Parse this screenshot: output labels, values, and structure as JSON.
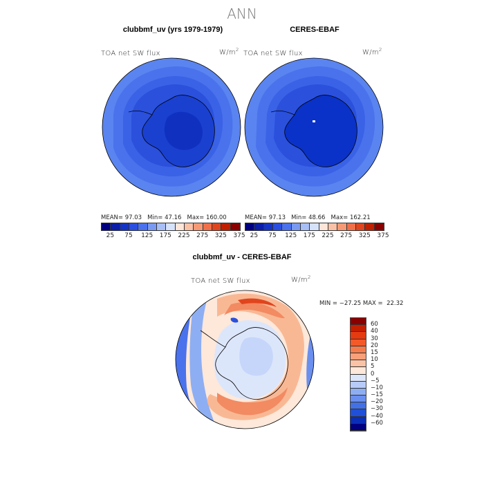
{
  "page": {
    "season": "ANN"
  },
  "panels": {
    "model": {
      "title": "clubbmf_uv (yrs 1979-1979)",
      "field": "TOA net SW flux",
      "units": "W/m",
      "units_sup": "2",
      "stats": {
        "mean_label": "MEAN=",
        "mean": "97.03",
        "min_label": "Min=",
        "min": "47.16",
        "max_label": "Max=",
        "max": "160.00"
      }
    },
    "obs": {
      "title": "CERES-EBAF",
      "field": "TOA net SW flux",
      "units": "W/m",
      "units_sup": "2",
      "stats": {
        "mean_label": "MEAN=",
        "mean": "97.13",
        "min_label": "Min=",
        "min": "48.66",
        "max_label": "Max=",
        "max": "162.21"
      }
    },
    "diff": {
      "title": "clubbmf_uv - CERES-EBAF",
      "field": "TOA net SW flux",
      "units": "W/m",
      "units_sup": "2",
      "minmax": "MIN = −27.25 MAX =  22.32"
    }
  },
  "abs_colorbar": {
    "colors": [
      "#000080",
      "#0a1ea8",
      "#1434c8",
      "#2a4fe0",
      "#4a72ee",
      "#7a9af2",
      "#a8bff6",
      "#d6e2fa",
      "#fde5d8",
      "#fac1a6",
      "#f69a76",
      "#f0704a",
      "#e0451e",
      "#c02000",
      "#8a0000"
    ],
    "labels": [
      "25",
      "75",
      "125",
      "175",
      "225",
      "275",
      "325",
      "375"
    ]
  },
  "diff_colorbar": {
    "colors": [
      "#8a0000",
      "#c42000",
      "#e63a10",
      "#f25a2a",
      "#f47c4c",
      "#f7a07a",
      "#fbc3a6",
      "#fde8da",
      "#dce6fb",
      "#b8cbf8",
      "#8eaef3",
      "#6a8fee",
      "#4270e6",
      "#2050d8",
      "#0a2eb8",
      "#000080"
    ],
    "labels": [
      "60",
      "40",
      "30",
      "20",
      "15",
      "10",
      "5",
      "0",
      "−5",
      "−10",
      "−15",
      "−20",
      "−30",
      "−40",
      "−60"
    ]
  },
  "maps": [
    {
      "name": "model-map",
      "colors": [
        "#5a84f0",
        "#4a72ec",
        "#3a62e6",
        "#2a50dc",
        "#1a40d0",
        "#1030c0"
      ]
    },
    {
      "name": "obs-map",
      "colors": [
        "#5a84f0",
        "#4a72ec",
        "#3a62e6",
        "#2a50dc",
        "#1a40d0",
        "#0a32c8"
      ]
    }
  ],
  "diff_map": {
    "colors": {
      "ocean_neutral": "#fde8da",
      "ocean_warm": "#f9b894",
      "ocean_hot": "#f28a62",
      "ocean_cool": "#dce6fb",
      "ocean_blue": "#8eaef3",
      "edge_blue": "#4a72ec",
      "ice": "#e6eefd",
      "ice_blue": "#c6d6fa"
    }
  }
}
